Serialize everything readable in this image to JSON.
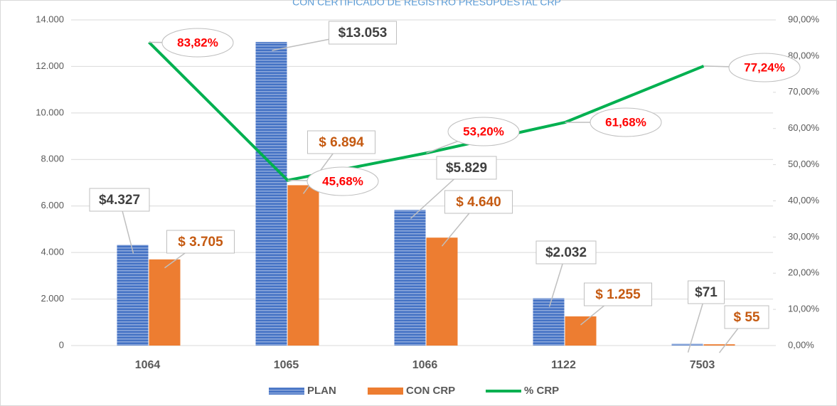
{
  "chart_data": {
    "type": "bar_line",
    "title": "CON CERTIFICADO DE REGISTRO PRESUPUESTAL CRP",
    "categories": [
      "1064",
      "1065",
      "1066",
      "1122",
      "7503"
    ],
    "series": [
      {
        "name": "PLAN",
        "color": "#4472c4",
        "values": [
          4327,
          13053,
          5829,
          2032,
          71
        ],
        "value_labels": [
          "$4.327",
          "$13.053",
          "$5.829",
          "$2.032",
          "$71"
        ]
      },
      {
        "name": "CON CRP",
        "color": "#ed7d31",
        "values": [
          3705,
          6894,
          4640,
          1255,
          55
        ],
        "value_labels": [
          "$ 3.705",
          "$ 6.894",
          "$ 4.640",
          "$ 1.255",
          "$ 55"
        ]
      },
      {
        "name": "% CRP",
        "color": "#00b050",
        "axis": "y2",
        "type": "line",
        "values": [
          83.82,
          45.68,
          53.2,
          61.68,
          77.24
        ],
        "value_labels": [
          "83,82%",
          "45,68%",
          "53,20%",
          "61,68%",
          "77,24%"
        ]
      }
    ],
    "ylim": [
      0,
      14000
    ],
    "yticks": [
      0,
      {
        "value": 2000,
        "label": "2.000"
      },
      {
        "value": 4000,
        "label": "4.000"
      },
      {
        "value": 6000,
        "label": "6.000"
      },
      {
        "value": 8000,
        "label": "8.000"
      },
      {
        "value": 10000,
        "label": "10.000"
      },
      {
        "value": 12000,
        "label": "12.000"
      },
      {
        "value": 14000,
        "label": "14.000"
      }
    ],
    "y2lim": [
      0,
      90
    ],
    "y2ticks": [
      {
        "value": 0,
        "label": "0,00%"
      },
      {
        "value": 10,
        "label": "10,00%"
      },
      {
        "value": 20,
        "label": "20,00%"
      },
      {
        "value": 30,
        "label": "30,00%"
      },
      {
        "value": 40,
        "label": "40,00%"
      },
      {
        "value": 50,
        "label": "50,00%"
      },
      {
        "value": 60,
        "label": "60,00%"
      },
      {
        "value": 70,
        "label": "70,00%"
      },
      {
        "value": 80,
        "label": "80,00%"
      },
      {
        "value": 90,
        "label": "90,00%"
      }
    ],
    "grid": true,
    "legend": "bottom"
  }
}
